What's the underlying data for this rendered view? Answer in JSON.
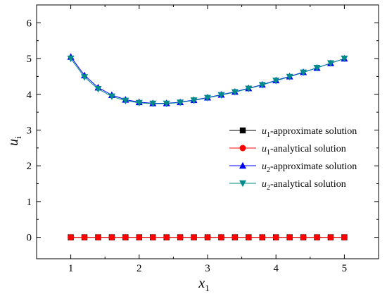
{
  "chart_data": {
    "type": "line",
    "xlabel": {
      "base": "x",
      "sub": "1"
    },
    "ylabel": {
      "base": "u",
      "sub": "i"
    },
    "xlim": [
      0.5,
      5.5
    ],
    "ylim": [
      -0.6,
      6.5
    ],
    "xticks": [
      1,
      2,
      3,
      4,
      5
    ],
    "yticks": [
      0,
      1,
      2,
      3,
      4,
      5,
      6
    ],
    "legend_position": "center-right",
    "x": [
      1.0,
      1.2,
      1.4,
      1.6,
      1.8,
      2.0,
      2.2,
      2.4,
      2.6,
      2.8,
      3.0,
      3.2,
      3.4,
      3.6,
      3.8,
      4.0,
      4.2,
      4.4,
      4.6,
      4.8,
      5.0
    ],
    "series": [
      {
        "name": {
          "base": "u",
          "sub": "1",
          "rest": "-approximate solution"
        },
        "marker": "square",
        "color": "#000000",
        "values": [
          0,
          0,
          0,
          0,
          0,
          0,
          0,
          0,
          0,
          0,
          0,
          0,
          0,
          0,
          0,
          0,
          0,
          0,
          0,
          0,
          0
        ]
      },
      {
        "name": {
          "base": "u",
          "sub": "1",
          "rest": "-analytical solution"
        },
        "marker": "circle",
        "color": "#ff0000",
        "values": [
          0,
          0,
          0,
          0,
          0,
          0,
          0,
          0,
          0,
          0,
          0,
          0,
          0,
          0,
          0,
          0,
          0,
          0,
          0,
          0,
          0
        ]
      },
      {
        "name": {
          "base": "u",
          "sub": "2",
          "rest": "-approximate solution"
        },
        "marker": "triangle-up",
        "color": "#0000ff",
        "values": [
          5.05,
          4.53,
          4.19,
          3.98,
          3.85,
          3.78,
          3.75,
          3.75,
          3.78,
          3.84,
          3.91,
          3.99,
          4.07,
          4.17,
          4.27,
          4.39,
          4.5,
          4.62,
          4.74,
          4.87,
          5.0
        ]
      },
      {
        "name": {
          "base": "u",
          "sub": "2",
          "rest": "-analytical solution"
        },
        "marker": "triangle-down",
        "color": "#008b8b",
        "values": [
          5.0,
          4.48,
          4.15,
          3.94,
          3.82,
          3.76,
          3.74,
          3.74,
          3.77,
          3.83,
          3.9,
          3.98,
          4.06,
          4.16,
          4.26,
          4.38,
          4.49,
          4.61,
          4.74,
          4.87,
          5.0
        ]
      }
    ]
  }
}
